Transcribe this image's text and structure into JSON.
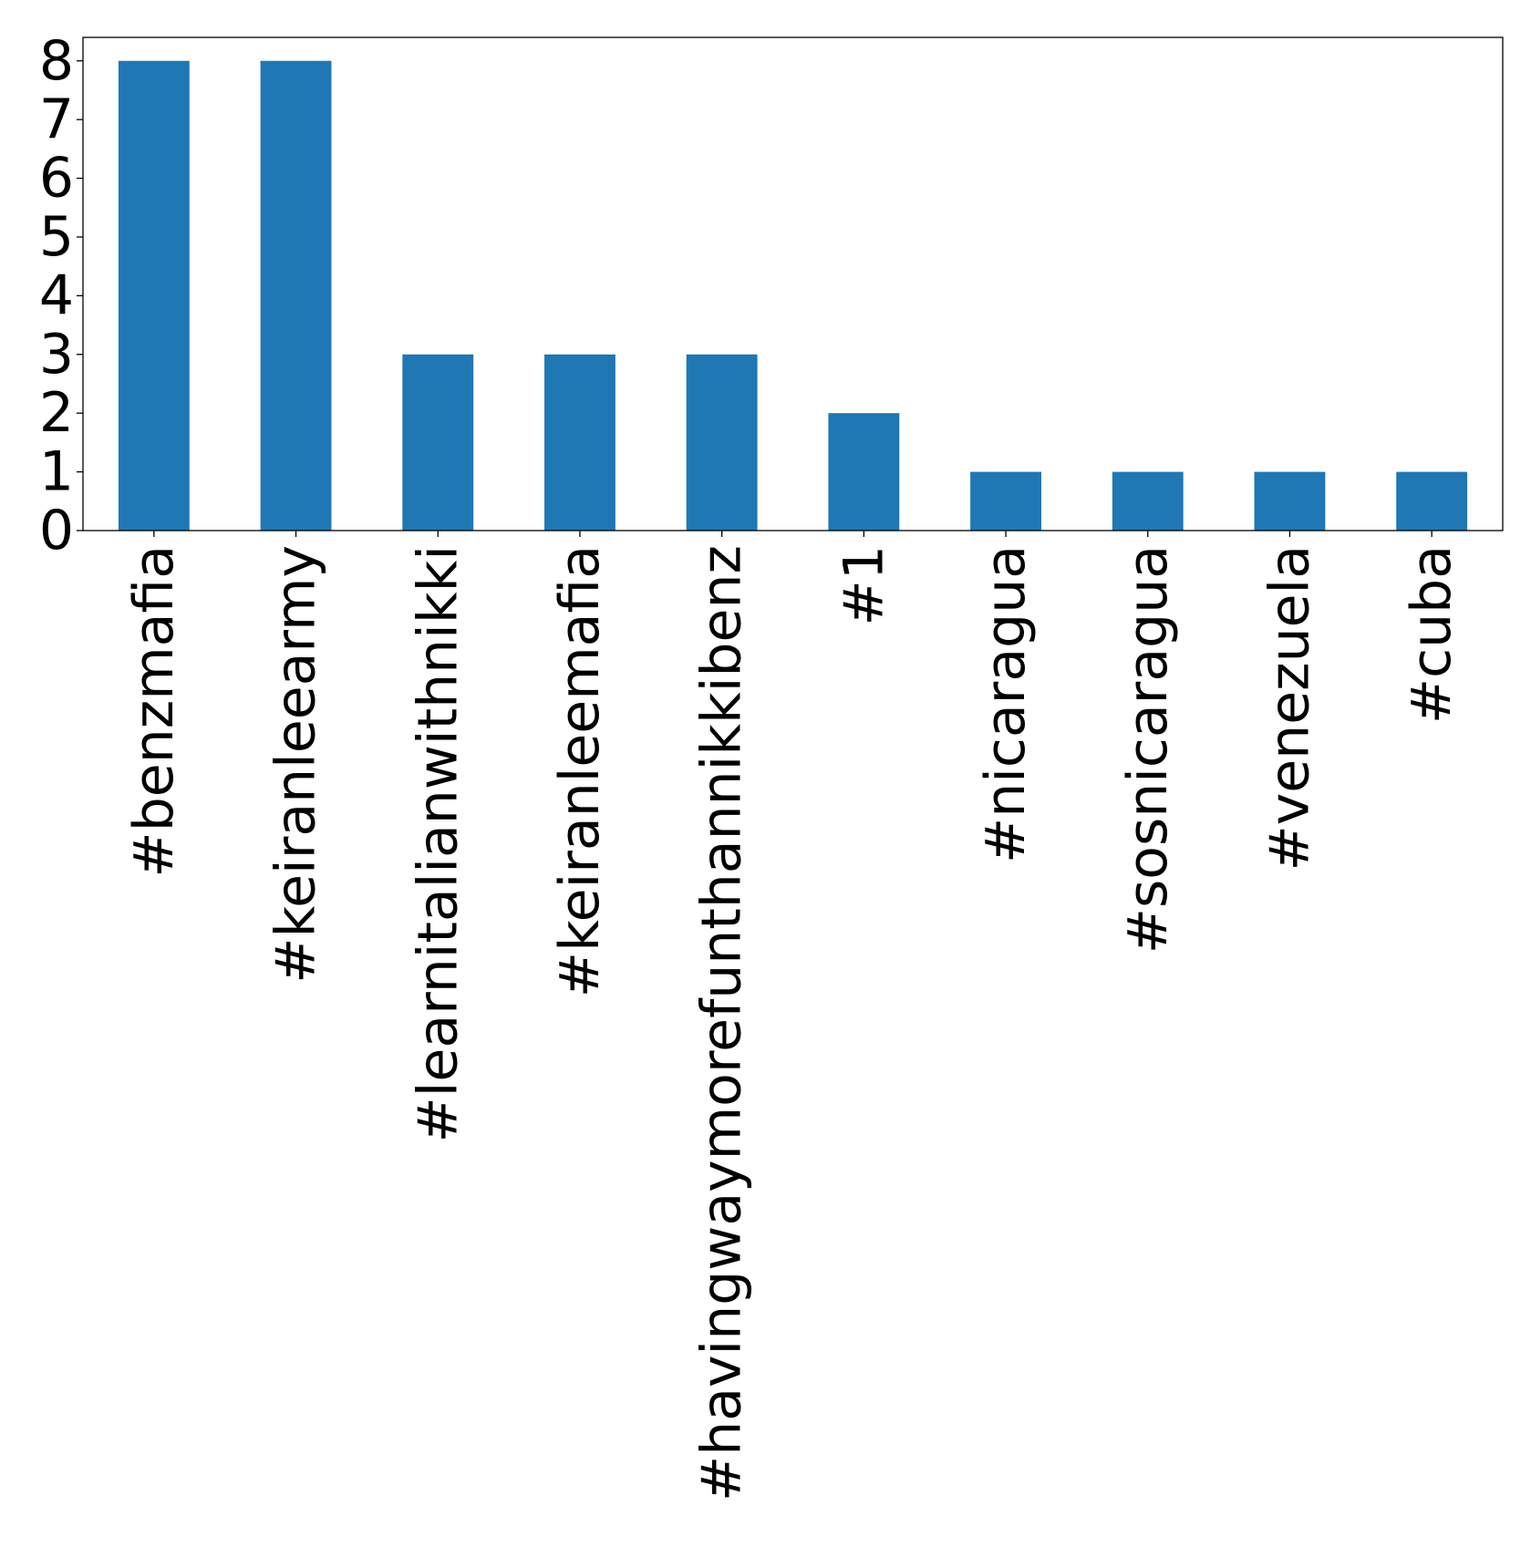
{
  "chart_data": {
    "type": "bar",
    "categories": [
      "#benzmafia",
      "#keiranleearmy",
      "#learnitalianwithnikki",
      "#keiranleemafia",
      "#havingwaymorefunthannikkibenz",
      "#1",
      "#nicaragua",
      "#sosnicaragua",
      "#venezuela",
      "#cuba"
    ],
    "values": [
      8,
      8,
      3,
      3,
      3,
      2,
      1,
      1,
      1,
      1
    ],
    "ylim": [
      0,
      8.4
    ],
    "yticks": [
      0,
      1,
      2,
      3,
      4,
      5,
      6,
      7,
      8
    ],
    "bar_color": "#1f77b4",
    "grid": false,
    "legend": "none"
  }
}
